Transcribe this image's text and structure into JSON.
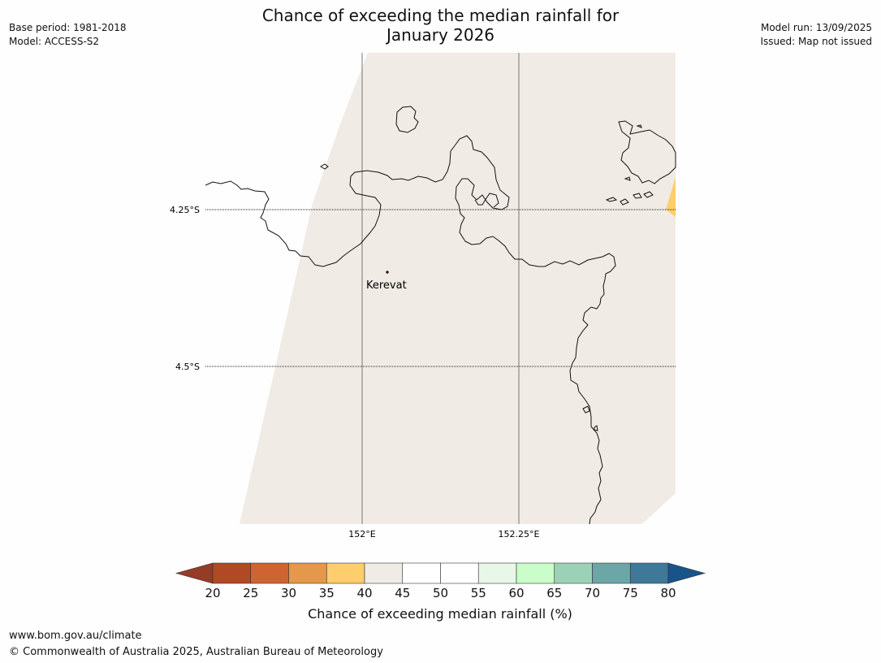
{
  "header": {
    "title_line1": "Chance of exceeding the median rainfall for",
    "title_line2": "January 2026",
    "base_period": "Base period: 1981-2018",
    "model": "Model: ACCESS-S2",
    "model_run": "Model run: 13/09/2025",
    "issued": "Issued: Map not issued"
  },
  "map": {
    "lat_labels": [
      "4.25°S",
      "4.5°S"
    ],
    "lon_labels": [
      "152°E",
      "152.25°E"
    ],
    "place": "Kerevat",
    "region_value_category": "40-45",
    "highlight_category": "35-40"
  },
  "colorbar": {
    "ticks": [
      "20",
      "25",
      "30",
      "35",
      "40",
      "45",
      "50",
      "55",
      "60",
      "65",
      "70",
      "75",
      "80"
    ],
    "colors": [
      "#b04924",
      "#ce6431",
      "#e3984a",
      "#fecd6c",
      "#f0ebe5",
      "#ffffff",
      "#ffffff",
      "#e9f7e9",
      "#c9fdc9",
      "#9bd2b7",
      "#6da6a7",
      "#3f7898"
    ],
    "under_color": "#963b25",
    "over_color": "#185389",
    "label": "Chance of exceeding median rainfall (%)"
  },
  "footer": {
    "url": "www.bom.gov.au/climate",
    "copyright": "© Commonwealth of Australia 2025, Australian Bureau of Meteorology"
  }
}
